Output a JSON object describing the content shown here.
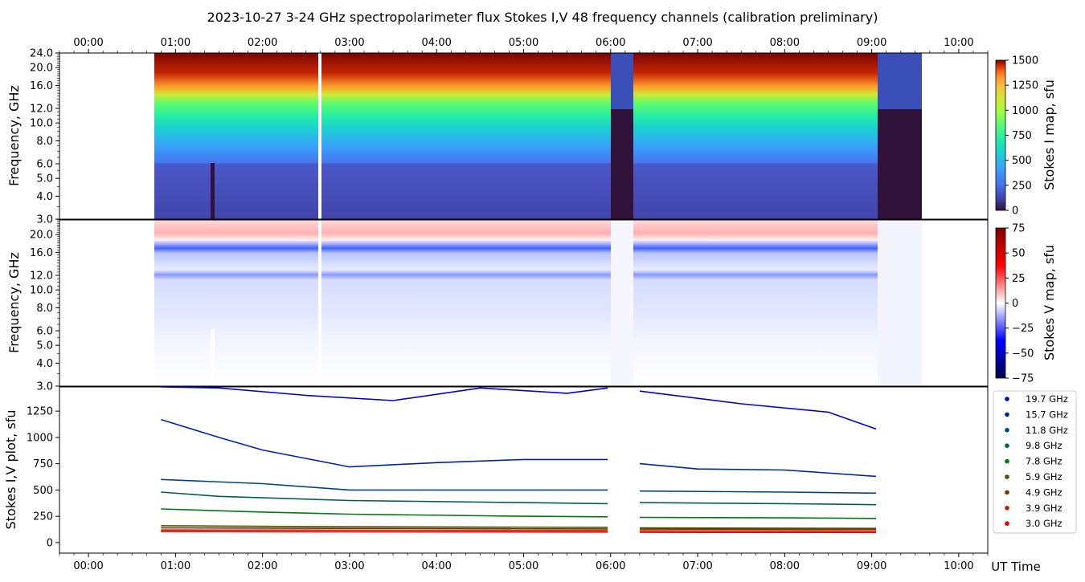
{
  "title": "2023-10-27     3-24 GHz spectropolarimeter flux   Stokes I,V   48 frequency channels   (calibration preliminary)",
  "chart_data": [
    {
      "type": "heatmap",
      "panel": "stokes-i-map",
      "ylabel": "Frequency, GHz",
      "colorbar_label": "Stokes I map, sfu",
      "colorbar_ticks": [
        "0",
        "250",
        "500",
        "750",
        "1000",
        "1250",
        "1500"
      ],
      "colorbar_range": [
        0,
        1500
      ],
      "yticks": [
        "3.0",
        "4.0",
        "5.0",
        "6.0",
        "8.0",
        "10.0",
        "12.0",
        "16.0",
        "20.0",
        "24.0"
      ],
      "ylim": [
        3.0,
        24.0
      ],
      "xlim": [
        "23:40",
        "10:20"
      ],
      "data_coverage": [
        "00:45",
        "09:33"
      ],
      "gaps": [
        [
          "02:38",
          "02:40"
        ],
        [
          "06:00",
          "06:15"
        ],
        [
          "09:04",
          "09:33"
        ]
      ],
      "colormap": "turbo"
    },
    {
      "type": "heatmap",
      "panel": "stokes-v-map",
      "ylabel": "Frequency, GHz",
      "colorbar_label": "Stokes V map, sfu",
      "colorbar_ticks": [
        "−75",
        "−50",
        "−25",
        "0",
        "25",
        "50",
        "75"
      ],
      "colorbar_range": [
        -75,
        75
      ],
      "yticks": [
        "3.0",
        "4.0",
        "5.0",
        "6.0",
        "8.0",
        "10.0",
        "12.0",
        "16.0",
        "20.0"
      ],
      "ylim": [
        3.0,
        24.0
      ],
      "colormap": "seismic"
    },
    {
      "type": "line",
      "panel": "stokes-iv-plot",
      "ylabel": "Stokes I,V plot, sfu",
      "xlabel": "UT Time",
      "yticks": [
        "0",
        "250",
        "500",
        "750",
        "1000",
        "1250"
      ],
      "ylim": [
        -100,
        1480
      ],
      "xlim": [
        "23:40",
        "10:20"
      ],
      "xticks": [
        "00:00",
        "01:00",
        "02:00",
        "03:00",
        "04:00",
        "05:00",
        "06:00",
        "07:00",
        "08:00",
        "09:00",
        "10:00"
      ],
      "series": [
        {
          "name": "19.7 GHz",
          "color": "#0000d8",
          "x": [
            "00:50",
            "01:30",
            "02:30",
            "03:30",
            "04:30",
            "05:30",
            "05:58",
            "06:20",
            "07:30",
            "08:30",
            "09:03"
          ],
          "values": [
            1480,
            1470,
            1400,
            1350,
            1470,
            1420,
            1470,
            1440,
            1320,
            1240,
            1080
          ]
        },
        {
          "name": "15.7 GHz",
          "color": "#0022b0",
          "x": [
            "00:50",
            "01:30",
            "02:00",
            "02:30",
            "03:00",
            "04:00",
            "05:00",
            "05:58",
            "06:20",
            "07:00",
            "08:00",
            "09:03"
          ],
          "values": [
            1170,
            1000,
            880,
            800,
            720,
            760,
            790,
            790,
            750,
            700,
            690,
            630
          ]
        },
        {
          "name": "11.8 GHz",
          "color": "#00457e",
          "x": [
            "00:50",
            "02:00",
            "03:00",
            "04:00",
            "05:00",
            "05:58",
            "06:20",
            "08:00",
            "09:03"
          ],
          "values": [
            600,
            560,
            500,
            500,
            500,
            500,
            490,
            480,
            470
          ]
        },
        {
          "name": "9.8 GHz",
          "color": "#00624a",
          "x": [
            "00:50",
            "01:30",
            "03:00",
            "05:00",
            "05:58",
            "06:20",
            "08:00",
            "09:03"
          ],
          "values": [
            480,
            440,
            400,
            380,
            370,
            380,
            370,
            360
          ]
        },
        {
          "name": "7.8 GHz",
          "color": "#007a10",
          "x": [
            "00:50",
            "02:00",
            "03:00",
            "05:00",
            "05:58",
            "06:20",
            "08:00",
            "09:03"
          ],
          "values": [
            320,
            290,
            270,
            250,
            245,
            240,
            235,
            230
          ]
        },
        {
          "name": "5.9 GHz",
          "color": "#3c5a00",
          "x": [
            "00:50",
            "03:00",
            "05:58",
            "06:20",
            "09:03"
          ],
          "values": [
            160,
            150,
            145,
            140,
            135
          ]
        },
        {
          "name": "4.9 GHz",
          "color": "#7a3200",
          "x": [
            "00:50",
            "03:00",
            "05:58",
            "06:20",
            "09:03"
          ],
          "values": [
            140,
            135,
            130,
            128,
            125
          ]
        },
        {
          "name": "3.9 GHz",
          "color": "#c22000",
          "x": [
            "00:50",
            "03:00",
            "05:58",
            "06:20",
            "09:03"
          ],
          "values": [
            120,
            118,
            115,
            112,
            110
          ]
        },
        {
          "name": "3.0 GHz",
          "color": "#e00000",
          "x": [
            "00:50",
            "03:00",
            "05:58",
            "06:20",
            "09:03"
          ],
          "values": [
            105,
            102,
            100,
            98,
            96
          ]
        }
      ]
    }
  ]
}
